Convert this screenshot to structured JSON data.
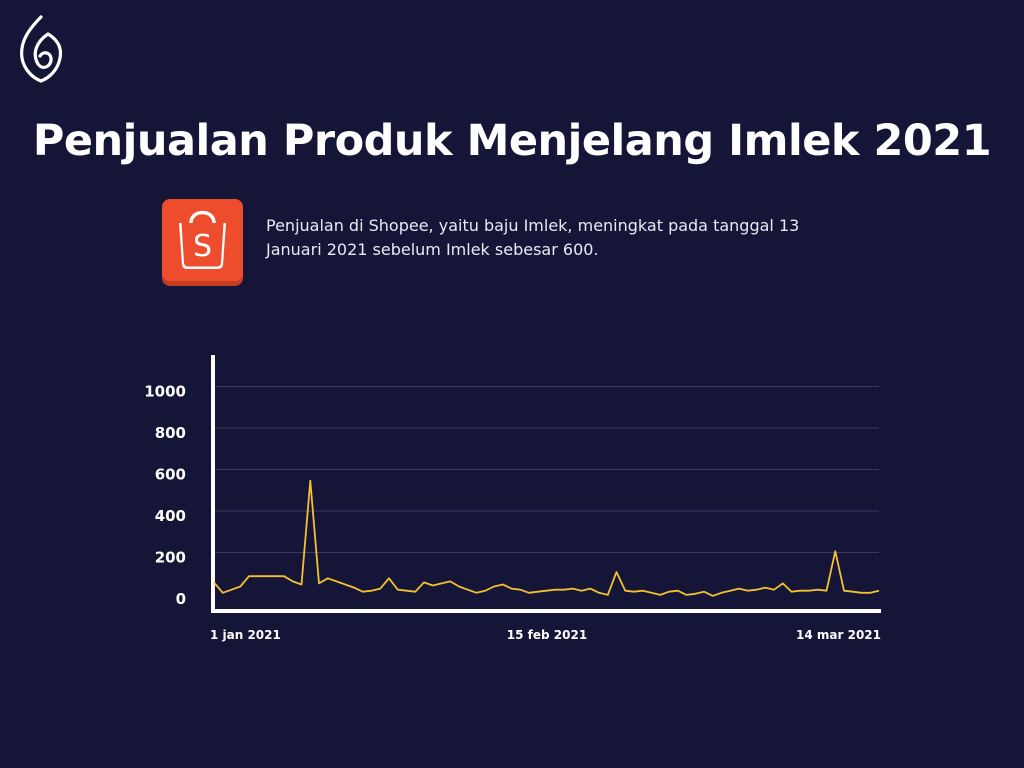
{
  "title": "Penjualan Produk Menjelang Imlek 2021",
  "description": "Penjualan di Shopee, yaitu baju Imlek, meningkat pada tanggal 13 Januari 2021 sebelum Imlek sebesar 600.",
  "logo": {
    "icon": "brand-leaf-logo-icon"
  },
  "shopee_icon": {
    "icon": "shopee-bag-icon",
    "letter": "S",
    "color": "#ee4d2d"
  },
  "colors": {
    "background": "#151538",
    "line": "#f3c12f",
    "grid": "#3b3b6a",
    "axis": "#ffffff"
  },
  "chart_data": {
    "type": "line",
    "x_tick_labels": [
      "1 jan 2021",
      "15 feb 2021",
      "14 mar 2021"
    ],
    "y_ticks": [
      0,
      200,
      400,
      600,
      800,
      1000
    ],
    "ylim": [
      0,
      1100
    ],
    "grid": true,
    "series": [
      {
        "values": [
          80,
          30,
          45,
          60,
          110,
          110,
          110,
          110,
          110,
          85,
          70,
          570,
          75,
          100,
          85,
          70,
          55,
          35,
          40,
          50,
          100,
          45,
          40,
          35,
          80,
          65,
          75,
          85,
          60,
          45,
          30,
          40,
          60,
          70,
          50,
          45,
          30,
          35,
          40,
          45,
          45,
          50,
          40,
          50,
          30,
          20,
          130,
          40,
          35,
          40,
          30,
          20,
          35,
          40,
          20,
          25,
          35,
          15,
          30,
          40,
          50,
          40,
          45,
          55,
          45,
          75,
          35,
          40,
          40,
          45,
          40,
          230,
          40,
          35,
          30,
          30,
          40
        ]
      }
    ]
  }
}
